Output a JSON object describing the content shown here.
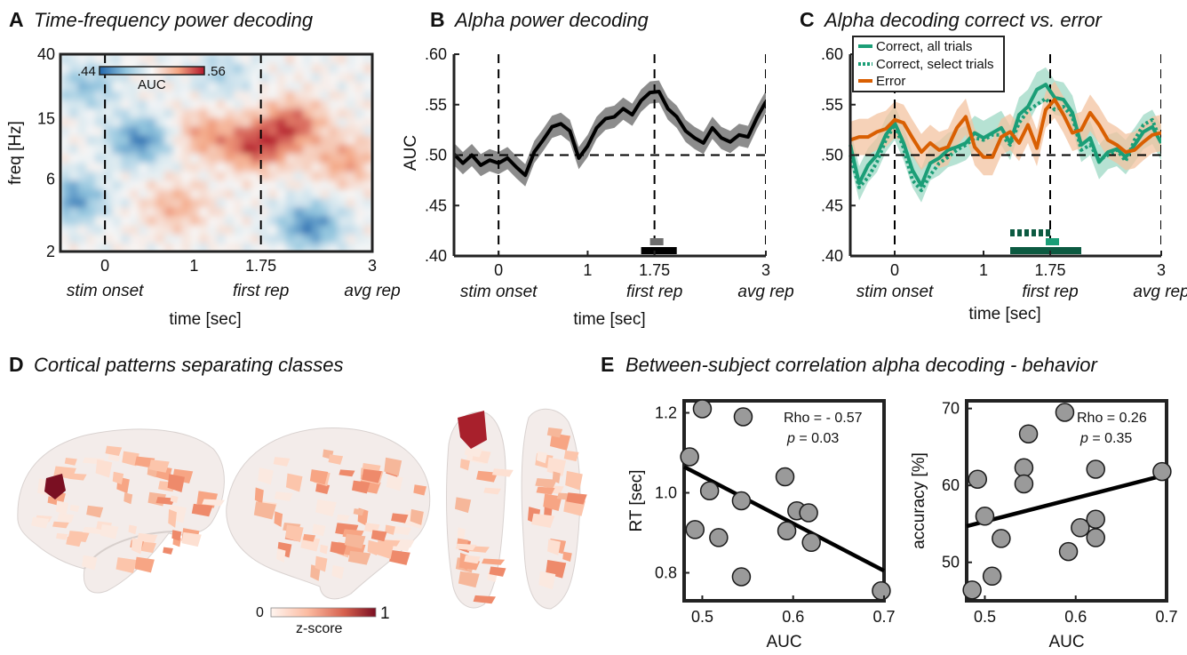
{
  "colors": {
    "black": "#000000",
    "gray_band": "#8c8c8c",
    "correct": "#1b9e77",
    "correct_band": "#9ed8c4",
    "error": "#d95f02",
    "error_band": "#f3c3a0",
    "sig_dark": "#0c5a41",
    "marker_fill": "#9a9a9a",
    "heat_low": "#2166ac",
    "heat_mid": "#f7f7f7",
    "heat_high": "#b2182b",
    "brain_high": "#7a0f22"
  },
  "chart_data": [
    {
      "id": "A",
      "type": "heatmap",
      "letter": "A",
      "title": "Time-frequency power decoding",
      "xlabel": "time [sec]",
      "ylabel": "freq [Hz]",
      "xlim": [
        -0.5,
        3
      ],
      "x_ticks": [
        0,
        1,
        1.75,
        3
      ],
      "x_tick_labels": [
        "0",
        "1",
        "1.75",
        "3"
      ],
      "y_ticks": [
        2,
        6,
        15,
        40
      ],
      "y_tick_labels": [
        "2",
        "6",
        "15",
        "40"
      ],
      "y_scale": "log",
      "event_lines": [
        0,
        1.75
      ],
      "event_labels": [
        {
          "x": 0,
          "label": "stim onset"
        },
        {
          "x": 1.75,
          "label": "first rep"
        },
        {
          "x": 3,
          "label": "avg rep"
        }
      ],
      "colorbar": {
        "min_label": ".44",
        "max_label": ".56",
        "label": "AUC",
        "range": [
          0.44,
          0.56
        ]
      },
      "blobs": [
        {
          "t": 0.4,
          "f": 11,
          "v": -0.05
        },
        {
          "t": -0.35,
          "f": 4.5,
          "v": -0.045
        },
        {
          "t": 2.3,
          "f": 3,
          "v": -0.05
        },
        {
          "t": 1.7,
          "f": 10,
          "v": 0.05
        },
        {
          "t": 2.1,
          "f": 14,
          "v": 0.045
        },
        {
          "t": 1.1,
          "f": 12,
          "v": 0.03
        },
        {
          "t": 0.8,
          "f": 4.0,
          "v": 0.025
        },
        {
          "t": 2.7,
          "f": 8,
          "v": 0.03
        },
        {
          "t": -0.2,
          "f": 25,
          "v": -0.03
        },
        {
          "t": 1.3,
          "f": 30,
          "v": -0.02
        }
      ]
    },
    {
      "id": "B",
      "type": "line",
      "letter": "B",
      "title": "Alpha power decoding",
      "xlabel": "time [sec]",
      "ylabel": "AUC",
      "xlim": [
        -0.5,
        3
      ],
      "ylim": [
        0.4,
        0.6
      ],
      "x_ticks": [
        0,
        1,
        1.75,
        3
      ],
      "x_tick_labels": [
        "0",
        "1",
        "1.75",
        "3"
      ],
      "y_ticks": [
        0.4,
        0.45,
        0.5,
        0.55,
        0.6
      ],
      "y_tick_labels": [
        ".40",
        ".45",
        ".50",
        ".55",
        ".60"
      ],
      "event_lines": [
        0,
        1.75,
        3
      ],
      "chance": 0.5,
      "event_labels": [
        {
          "x": 0,
          "label": "stim onset"
        },
        {
          "x": 1.75,
          "label": "first rep"
        },
        {
          "x": 3,
          "label": "avg rep"
        }
      ],
      "series": [
        {
          "x": [
            -0.5,
            -0.4,
            -0.3,
            -0.2,
            -0.1,
            0,
            0.1,
            0.2,
            0.3,
            0.4,
            0.5,
            0.6,
            0.7,
            0.8,
            0.9,
            1.0,
            1.1,
            1.2,
            1.3,
            1.4,
            1.5,
            1.6,
            1.7,
            1.8,
            1.9,
            2.0,
            2.1,
            2.2,
            2.3,
            2.4,
            2.5,
            2.6,
            2.7,
            2.8,
            2.9,
            3.0
          ],
          "y": [
            0.501,
            0.492,
            0.5,
            0.49,
            0.495,
            0.492,
            0.497,
            0.488,
            0.48,
            0.503,
            0.515,
            0.528,
            0.531,
            0.524,
            0.497,
            0.509,
            0.527,
            0.536,
            0.538,
            0.546,
            0.54,
            0.554,
            0.562,
            0.563,
            0.546,
            0.538,
            0.524,
            0.517,
            0.512,
            0.527,
            0.517,
            0.513,
            0.52,
            0.518,
            0.537,
            0.553
          ],
          "band": 0.011
        }
      ],
      "sig_bars": [
        {
          "x0": 1.6,
          "x1": 2.0,
          "level": 1
        },
        {
          "x0": 1.7,
          "x1": 1.85,
          "level": 2
        }
      ]
    },
    {
      "id": "C",
      "type": "line",
      "letter": "C",
      "title": "Alpha decoding correct vs. error",
      "xlabel": "time [sec]",
      "xlim": [
        -0.5,
        3
      ],
      "ylim": [
        0.4,
        0.6
      ],
      "x_ticks": [
        0,
        1,
        1.75,
        3
      ],
      "x_tick_labels": [
        "0",
        "1",
        "1.75",
        "3"
      ],
      "y_ticks": [
        0.4,
        0.45,
        0.5,
        0.55,
        0.6
      ],
      "y_tick_labels": [
        ".40",
        ".45",
        ".50",
        ".55",
        ".60"
      ],
      "event_lines": [
        0,
        1.75,
        3
      ],
      "chance": 0.5,
      "event_labels": [
        {
          "x": 0,
          "label": "stim onset"
        },
        {
          "x": 1.75,
          "label": "first rep"
        },
        {
          "x": 3,
          "label": "avg rep"
        }
      ],
      "legend": [
        {
          "label": "Correct, all trials",
          "style": "solid",
          "color": "#1b9e77"
        },
        {
          "label": "Correct, select trials",
          "style": "dotted",
          "color": "#1b9e77"
        },
        {
          "label": "Error",
          "style": "solid",
          "color": "#d95f02"
        }
      ],
      "series": [
        {
          "style": "solid",
          "color": "#1b9e77",
          "band_color": "#9ed8c4",
          "band": 0.017,
          "x": [
            -0.5,
            -0.4,
            -0.3,
            -0.2,
            -0.1,
            0,
            0.1,
            0.2,
            0.3,
            0.4,
            0.5,
            0.6,
            0.7,
            0.8,
            0.9,
            1.0,
            1.1,
            1.2,
            1.3,
            1.4,
            1.5,
            1.6,
            1.7,
            1.8,
            1.9,
            2.0,
            2.1,
            2.2,
            2.3,
            2.4,
            2.5,
            2.6,
            2.7,
            2.8,
            2.9,
            3.0
          ],
          "y": [
            0.51,
            0.472,
            0.49,
            0.5,
            0.52,
            0.532,
            0.512,
            0.485,
            0.47,
            0.492,
            0.497,
            0.505,
            0.508,
            0.512,
            0.522,
            0.517,
            0.522,
            0.527,
            0.512,
            0.54,
            0.548,
            0.565,
            0.57,
            0.557,
            0.555,
            0.542,
            0.51,
            0.517,
            0.493,
            0.503,
            0.506,
            0.498,
            0.51,
            0.523,
            0.528,
            0.512
          ]
        },
        {
          "style": "dotted",
          "color": "#1b9e77",
          "x": [
            -0.5,
            -0.4,
            -0.3,
            -0.2,
            -0.1,
            0,
            0.1,
            0.2,
            0.3,
            0.4,
            0.5,
            0.6,
            0.7,
            0.8,
            0.9,
            1.0,
            1.1,
            1.2,
            1.3,
            1.4,
            1.5,
            1.6,
            1.7,
            1.8,
            1.9,
            2.0,
            2.1,
            2.2,
            2.3,
            2.4,
            2.5,
            2.6,
            2.7,
            2.8,
            2.9,
            3.0
          ],
          "y": [
            0.5,
            0.468,
            0.478,
            0.493,
            0.515,
            0.53,
            0.507,
            0.475,
            0.465,
            0.48,
            0.492,
            0.498,
            0.505,
            0.51,
            0.517,
            0.515,
            0.52,
            0.52,
            0.51,
            0.532,
            0.544,
            0.55,
            0.556,
            0.545,
            0.548,
            0.538,
            0.505,
            0.51,
            0.495,
            0.5,
            0.505,
            0.494,
            0.515,
            0.53,
            0.535,
            0.512
          ]
        },
        {
          "style": "solid",
          "color": "#d95f02",
          "band_color": "#f3c3a0",
          "band": 0.018,
          "x": [
            -0.5,
            -0.4,
            -0.3,
            -0.2,
            -0.1,
            0,
            0.1,
            0.2,
            0.3,
            0.4,
            0.5,
            0.6,
            0.7,
            0.8,
            0.9,
            1.0,
            1.1,
            1.2,
            1.3,
            1.4,
            1.5,
            1.6,
            1.7,
            1.8,
            1.9,
            2.0,
            2.1,
            2.2,
            2.3,
            2.4,
            2.5,
            2.6,
            2.7,
            2.8,
            2.9,
            3.0
          ],
          "y": [
            0.515,
            0.518,
            0.518,
            0.523,
            0.526,
            0.535,
            0.532,
            0.517,
            0.503,
            0.512,
            0.505,
            0.508,
            0.527,
            0.538,
            0.508,
            0.498,
            0.498,
            0.518,
            0.523,
            0.512,
            0.53,
            0.507,
            0.545,
            0.555,
            0.54,
            0.522,
            0.525,
            0.542,
            0.53,
            0.515,
            0.51,
            0.503,
            0.505,
            0.513,
            0.52,
            0.522
          ]
        }
      ],
      "sig_bars": [
        {
          "x0": 1.3,
          "x1": 1.75,
          "level": 3,
          "style": "dotted"
        },
        {
          "x0": 1.3,
          "x1": 2.1,
          "level": 1,
          "style": "solid"
        },
        {
          "x0": 1.7,
          "x1": 1.85,
          "level": 2,
          "style": "solid"
        }
      ]
    },
    {
      "id": "E1",
      "type": "scatter",
      "xlabel": "AUC",
      "ylabel": "RT [sec]",
      "xlim": [
        0.48,
        0.7
      ],
      "ylim": [
        0.73,
        1.23
      ],
      "x_ticks": [
        0.5,
        0.6,
        0.7
      ],
      "x_tick_labels": [
        "0.5",
        "0.6",
        "0.7"
      ],
      "y_ticks": [
        0.8,
        1.0,
        1.2
      ],
      "y_tick_labels": [
        "0.8",
        "1.0",
        "1.2"
      ],
      "annotation": [
        "Rho = - 0.57",
        "p = 0.03"
      ],
      "points": [
        {
          "x": 0.5,
          "y": 1.21
        },
        {
          "x": 0.545,
          "y": 1.19
        },
        {
          "x": 0.486,
          "y": 1.09
        },
        {
          "x": 0.591,
          "y": 1.04
        },
        {
          "x": 0.508,
          "y": 1.005
        },
        {
          "x": 0.543,
          "y": 0.98
        },
        {
          "x": 0.604,
          "y": 0.955
        },
        {
          "x": 0.617,
          "y": 0.95
        },
        {
          "x": 0.593,
          "y": 0.905
        },
        {
          "x": 0.492,
          "y": 0.908
        },
        {
          "x": 0.518,
          "y": 0.888
        },
        {
          "x": 0.62,
          "y": 0.876
        },
        {
          "x": 0.543,
          "y": 0.79
        },
        {
          "x": 0.697,
          "y": 0.755
        }
      ],
      "fit": {
        "x": [
          0.48,
          0.7
        ],
        "y": [
          1.065,
          0.805
        ]
      }
    },
    {
      "id": "E2",
      "type": "scatter",
      "xlabel": "AUC",
      "ylabel": "accuracy [%]",
      "xlim": [
        0.48,
        0.7
      ],
      "ylim": [
        45,
        71
      ],
      "x_ticks": [
        0.5,
        0.6,
        0.7
      ],
      "x_tick_labels": [
        "0.5",
        "0.6",
        "0.7"
      ],
      "y_ticks": [
        50,
        60,
        70
      ],
      "y_tick_labels": [
        "50",
        "60",
        "70"
      ],
      "annotation": [
        "Rho = 0.26",
        "p = 0.35"
      ],
      "points": [
        {
          "x": 0.588,
          "y": 69.5
        },
        {
          "x": 0.548,
          "y": 66.7
        },
        {
          "x": 0.543,
          "y": 62.3
        },
        {
          "x": 0.622,
          "y": 62.1
        },
        {
          "x": 0.695,
          "y": 61.8
        },
        {
          "x": 0.492,
          "y": 60.8
        },
        {
          "x": 0.543,
          "y": 60.2
        },
        {
          "x": 0.5,
          "y": 56.0
        },
        {
          "x": 0.622,
          "y": 55.6
        },
        {
          "x": 0.605,
          "y": 54.5
        },
        {
          "x": 0.518,
          "y": 53.1
        },
        {
          "x": 0.622,
          "y": 53.2
        },
        {
          "x": 0.592,
          "y": 51.4
        },
        {
          "x": 0.508,
          "y": 48.2
        },
        {
          "x": 0.486,
          "y": 46.4
        }
      ],
      "fit": {
        "x": [
          0.48,
          0.7
        ],
        "y": [
          54.7,
          61.4
        ]
      }
    }
  ],
  "panel_d": {
    "letter": "D",
    "title": "Cortical patterns separating classes",
    "colorbar": {
      "min_label": "0",
      "max_label": "1",
      "label": "z-score"
    }
  },
  "panel_e": {
    "letter": "E",
    "title": "Between-subject correlation alpha decoding - behavior"
  }
}
